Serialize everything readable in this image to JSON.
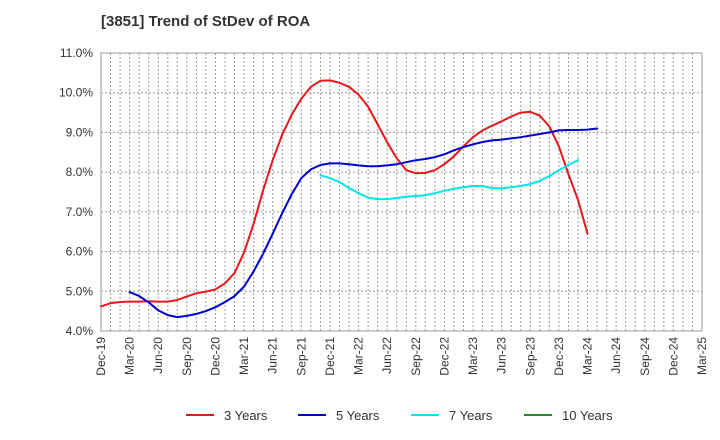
{
  "chart_data": {
    "type": "line",
    "title": "[3851]  Trend of StDev of ROA",
    "xlabel": "",
    "ylabel": "",
    "ylim": [
      4.0,
      11.0
    ],
    "y_ticks": [
      "4.0%",
      "5.0%",
      "6.0%",
      "7.0%",
      "8.0%",
      "9.0%",
      "10.0%",
      "11.0%"
    ],
    "x_ticks": [
      "Dec-19",
      "Mar-20",
      "Jun-20",
      "Sep-20",
      "Dec-20",
      "Mar-21",
      "Jun-21",
      "Sep-21",
      "Dec-21",
      "Mar-22",
      "Jun-22",
      "Sep-22",
      "Dec-22",
      "Mar-23",
      "Jun-23",
      "Sep-23",
      "Dec-23",
      "Mar-24",
      "Jun-24",
      "Sep-24",
      "Dec-24",
      "Mar-25"
    ],
    "grid": true,
    "legend_position": "bottom",
    "series": [
      {
        "name": "3 Years",
        "color": "#e31a1c",
        "start_index": 0,
        "values": [
          4.62,
          4.7,
          4.73,
          4.74,
          4.74,
          4.75,
          4.74,
          4.74,
          4.78,
          4.87,
          4.95,
          4.99,
          5.05,
          5.2,
          5.46,
          5.98,
          6.7,
          7.55,
          8.3,
          8.95,
          9.45,
          9.85,
          10.15,
          10.3,
          10.31,
          10.25,
          10.15,
          9.95,
          9.65,
          9.2,
          8.75,
          8.35,
          8.05,
          7.97,
          7.98,
          8.05,
          8.2,
          8.4,
          8.65,
          8.88,
          9.05,
          9.17,
          9.28,
          9.4,
          9.5,
          9.52,
          9.42,
          9.15,
          8.65,
          7.95,
          7.3,
          6.45
        ]
      },
      {
        "name": "5 Years",
        "color": "#0000cc",
        "start_index": 3,
        "values": [
          4.98,
          4.88,
          4.72,
          4.52,
          4.4,
          4.35,
          4.38,
          4.43,
          4.5,
          4.6,
          4.73,
          4.88,
          5.12,
          5.5,
          5.95,
          6.45,
          6.97,
          7.45,
          7.85,
          8.07,
          8.18,
          8.22,
          8.22,
          8.2,
          8.17,
          8.15,
          8.15,
          8.17,
          8.2,
          8.25,
          8.3,
          8.33,
          8.38,
          8.45,
          8.55,
          8.63,
          8.7,
          8.76,
          8.8,
          8.82,
          8.85,
          8.88,
          8.92,
          8.96,
          9.0,
          9.05,
          9.06,
          9.06,
          9.07,
          9.1
        ]
      },
      {
        "name": "7 Years",
        "color": "#00e5ee",
        "start_index": 23,
        "values": [
          7.92,
          7.85,
          7.75,
          7.6,
          7.47,
          7.36,
          7.32,
          7.32,
          7.35,
          7.38,
          7.4,
          7.42,
          7.47,
          7.53,
          7.58,
          7.62,
          7.65,
          7.65,
          7.6,
          7.59,
          7.62,
          7.65,
          7.7,
          7.78,
          7.9,
          8.05,
          8.18,
          8.3
        ]
      },
      {
        "name": "10 Years",
        "color": "#228b22",
        "start_index": 0,
        "values": []
      }
    ]
  }
}
